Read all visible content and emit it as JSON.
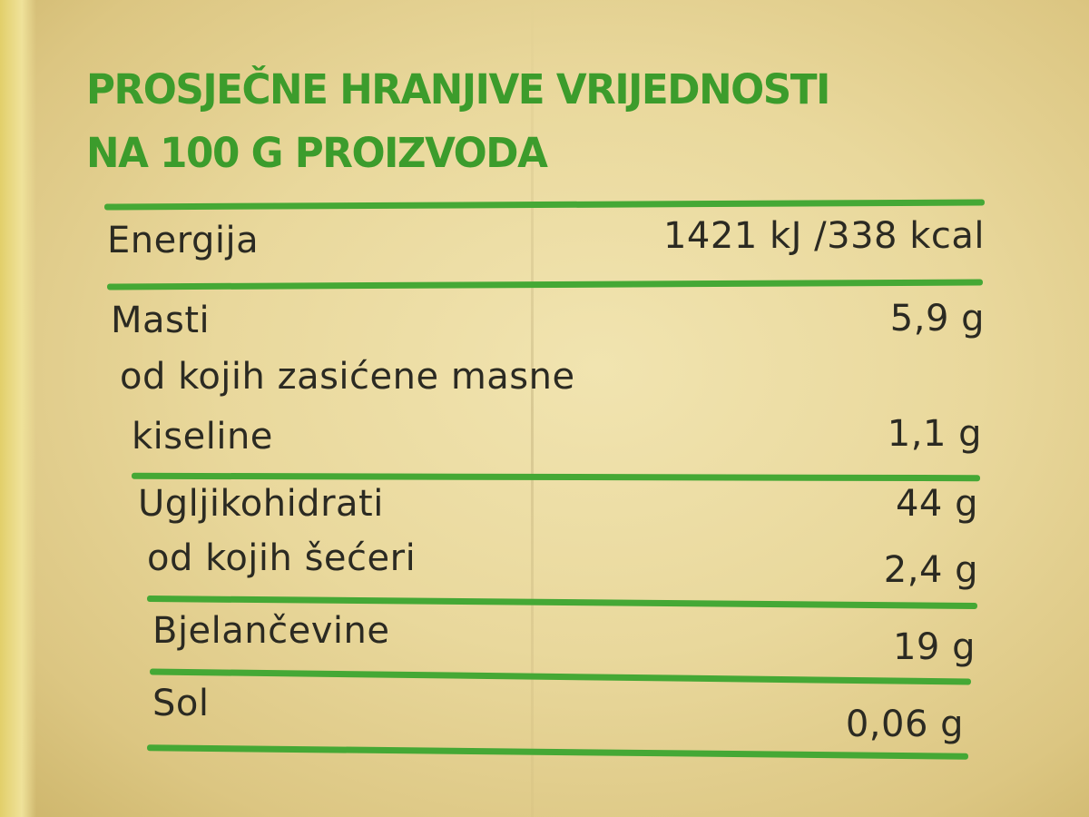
{
  "title": {
    "line1": "PROSJEČNE HRANJIVE VRIJEDNOSTI",
    "line2": "NA 100 G PROIZVODA"
  },
  "colors": {
    "accent_green": "#45a835",
    "text": "#2b2a22",
    "background": "#e9d89c"
  },
  "rows": [
    {
      "label": "Energija",
      "value": "1421 kJ /338 kcal"
    },
    {
      "label": "Masti",
      "value": "5,9 g"
    },
    {
      "label": "od kojih zasićene masne",
      "value": ""
    },
    {
      "label": "kiseline",
      "value": "1,1 g"
    },
    {
      "label": "Ugljikohidrati",
      "value": "44 g"
    },
    {
      "label": "od kojih šećeri",
      "value": "2,4 g"
    },
    {
      "label": "Bjelančevine",
      "value": "19 g"
    },
    {
      "label": "Sol",
      "value": "0,06 g"
    }
  ]
}
